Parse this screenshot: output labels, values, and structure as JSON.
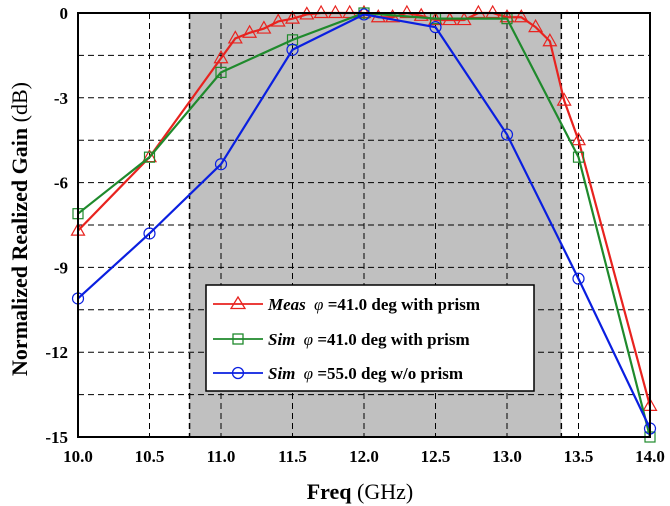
{
  "chart_data": {
    "type": "line",
    "title": "",
    "xlabel": {
      "bold": "Freq",
      "unit": "(GHz)"
    },
    "ylabel": {
      "bold": "Normalized Realized Gain",
      "unit": "(dB)"
    },
    "xlim": [
      10.0,
      14.0
    ],
    "ylim": [
      -15,
      0
    ],
    "x_ticks": [
      "10.0",
      "10.5",
      "11.0",
      "11.5",
      "12.0",
      "12.5",
      "13.0",
      "13.5",
      "14.0"
    ],
    "y_ticks": [
      "0",
      "-3",
      "-6",
      "-9",
      "-12",
      "-15"
    ],
    "grid": "dashed",
    "shaded_band": {
      "x": [
        10.78,
        13.38
      ],
      "color": "#c0c0c0"
    },
    "legend": {
      "position": "bottom-center",
      "entries": [
        {
          "ref": 0,
          "type": "Meas",
          "phi": "φ",
          "rest": " =41.0 deg with prism"
        },
        {
          "ref": 1,
          "type": "Sim",
          "phi": "φ",
          "rest": " =41.0 deg with prism"
        },
        {
          "ref": 2,
          "type": "Sim",
          "phi": "φ",
          "rest": " =55.0 deg w/o prism"
        }
      ]
    },
    "series": [
      {
        "color": "#e8231f",
        "marker": "triangle",
        "marker_step": 1,
        "x": [
          10.0,
          10.5,
          11.0,
          11.1,
          11.2,
          11.3,
          11.4,
          11.5,
          11.6,
          11.7,
          11.8,
          11.9,
          12.0,
          12.1,
          12.2,
          12.3,
          12.4,
          12.5,
          12.6,
          12.7,
          12.8,
          12.9,
          13.0,
          13.1,
          13.2,
          13.3,
          13.4,
          13.5,
          14.0
        ],
        "y": [
          -7.7,
          -5.1,
          -1.6,
          -0.9,
          -0.7,
          -0.55,
          -0.3,
          -0.2,
          -0.05,
          0,
          0,
          0,
          0,
          -0.15,
          -0.15,
          0,
          -0.1,
          -0.25,
          -0.25,
          -0.25,
          0,
          0,
          -0.15,
          -0.15,
          -0.5,
          -1.0,
          -3.1,
          -4.5,
          -13.9
        ]
      },
      {
        "color": "#1f8a2c",
        "marker": "square",
        "marker_step": 1,
        "x": [
          10.0,
          10.5,
          11.0,
          11.5,
          12.0,
          12.5,
          13.0,
          13.5,
          14.0
        ],
        "y": [
          -7.1,
          -5.1,
          -2.1,
          -0.95,
          0,
          -0.2,
          -0.2,
          -5.1,
          -15.0
        ]
      },
      {
        "color": "#0a1fe0",
        "marker": "circle",
        "marker_step": 1,
        "x": [
          10.0,
          10.5,
          11.0,
          11.5,
          12.0,
          12.5,
          13.0,
          13.5,
          14.0
        ],
        "y": [
          -10.1,
          -7.8,
          -5.35,
          -1.3,
          -0.05,
          -0.5,
          -4.3,
          -9.4,
          -14.7
        ]
      }
    ]
  }
}
